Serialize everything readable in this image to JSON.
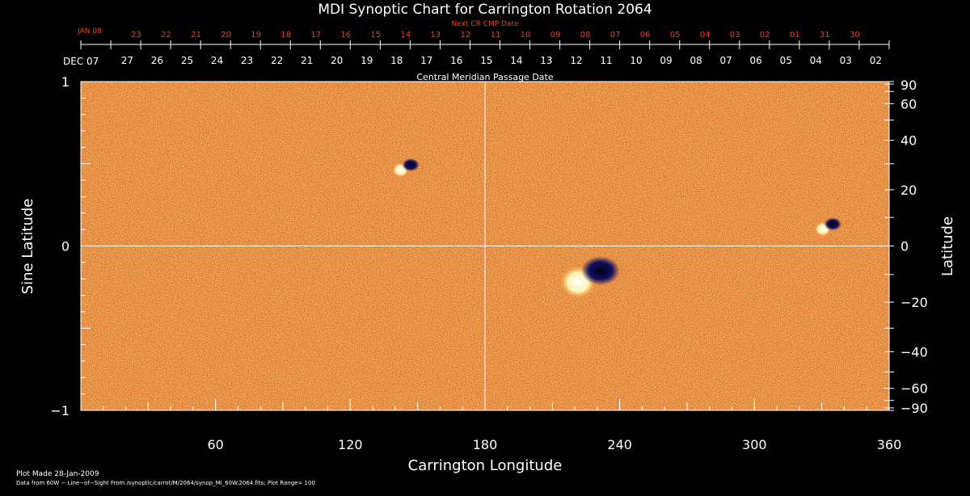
{
  "chart_data": {
    "type": "heatmap",
    "title": "MDI Synoptic Chart for Carrington Rotation 2064",
    "xlabel": "Carrington Longitude",
    "ylabel": "Sine Latitude",
    "y2label": "Latitude",
    "xlim": [
      0,
      360
    ],
    "ylim": [
      -1,
      1
    ],
    "x_ticks": [
      "60",
      "120",
      "180",
      "240",
      "300",
      "360"
    ],
    "x_tick_values": [
      60,
      120,
      180,
      240,
      300,
      360
    ],
    "y_ticks": [
      "1",
      "0",
      "−1"
    ],
    "y_tick_values": [
      1,
      0,
      -1
    ],
    "y2_ticks": [
      "90",
      "60",
      "40",
      "20",
      "0",
      "−20",
      "−40",
      "−60",
      "−90"
    ],
    "y2_tick_values": [
      90,
      60,
      40,
      20,
      0,
      -20,
      -40,
      -60,
      -90
    ],
    "top_axis": {
      "label": "Central Meridian Passage Date",
      "start_label": "DEC 07",
      "dates": [
        "27",
        "26",
        "25",
        "24",
        "23",
        "22",
        "21",
        "20",
        "19",
        "18",
        "17",
        "16",
        "15",
        "14",
        "13",
        "12",
        "11",
        "10",
        "09",
        "08",
        "07",
        "06",
        "05",
        "04",
        "03",
        "02"
      ]
    },
    "next_cr_axis": {
      "label": "Next CR CMP Date",
      "start_label": "JAN 08",
      "dates": [
        "23",
        "22",
        "21",
        "20",
        "19",
        "18",
        "17",
        "16",
        "15",
        "14",
        "13",
        "12",
        "11",
        "10",
        "09",
        "08",
        "07",
        "06",
        "05",
        "04",
        "03",
        "02",
        "01",
        "31",
        "30"
      ]
    },
    "features": [
      {
        "name": "active region pair",
        "longitude": 144,
        "sine_latitude": 0.48,
        "polarity": "bipolar"
      },
      {
        "name": "major active region",
        "longitude": 225,
        "sine_latitude": -0.18,
        "polarity": "bipolar"
      },
      {
        "name": "small bipole",
        "longitude": 332,
        "sine_latitude": 0.12,
        "polarity": "bipolar"
      }
    ],
    "colors": {
      "background": "#e8541a",
      "positive": "#ffffff",
      "negative": "#0a0a50"
    },
    "grid": "lines at 180 longitude and 0 latitude"
  },
  "footer": {
    "plot_made": "Plot Made 28-Jan-2009",
    "data_source": "Data from 60W − Line−of−Sight From /synoptic/carrot/M/2064/synop_Ml_60W.2064.fits; Plot Range= 100"
  }
}
